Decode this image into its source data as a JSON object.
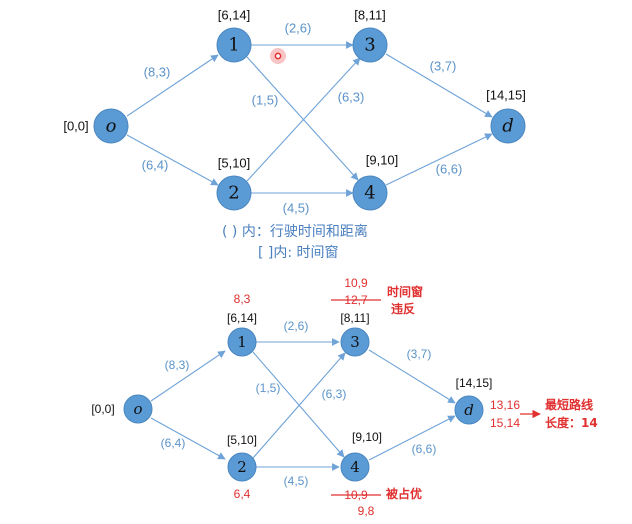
{
  "top": {
    "nodes": {
      "o": {
        "label": "o",
        "window": "[0,0]"
      },
      "n1": {
        "label": "1",
        "window": "[6,14]"
      },
      "n2": {
        "label": "2",
        "window": "[5,10]"
      },
      "n3": {
        "label": "3",
        "window": "[8,11]"
      },
      "n4": {
        "label": "4",
        "window": "[9,10]"
      },
      "d": {
        "label": "d",
        "window": "[14,15]"
      }
    },
    "edges": {
      "o_1": "(8,3)",
      "o_2": "(6,4)",
      "e1_3": "(2,6)",
      "e1_4": "(1,5)",
      "e2_3": "(6,3)",
      "e2_4": "(4,5)",
      "e3_d": "(3,7)",
      "e4_d": "(6,6)"
    },
    "legend": {
      "line1": "( ) 内：行驶时间和距离",
      "line2": "[ ]内: 时间窗"
    }
  },
  "bottom": {
    "nodes": {
      "o": {
        "label": "o",
        "window": "[0,0]"
      },
      "n1": {
        "label": "1",
        "window": "[6,14]"
      },
      "n2": {
        "label": "2",
        "window": "[5,10]"
      },
      "n3": {
        "label": "3",
        "window": "[8,11]"
      },
      "n4": {
        "label": "4",
        "window": "[9,10]"
      },
      "d": {
        "label": "d",
        "window": "[14,15]"
      }
    },
    "edges": {
      "o_1": "(8,3)",
      "o_2": "(6,4)",
      "e1_3": "(2,6)",
      "e1_4": "(1,5)",
      "e2_3": "(6,3)",
      "e2_4": "(4,5)",
      "e3_d": "(3,7)",
      "e4_d": "(6,6)"
    },
    "annotations": {
      "n1_label": "8,3",
      "n2_label": "6,4",
      "n3_label_new": "10,9",
      "n3_label_old": "12,7",
      "n3_note_line1": "时间窗",
      "n3_note_line2": "违反",
      "n4_label_old": "10,9",
      "n4_label_new": "9,8",
      "n4_note": "被占优",
      "d_label_1": "13,16",
      "d_label_2": "15,14",
      "result_line1": "最短路线",
      "result_line2": "长度：14"
    }
  },
  "colors": {
    "node": "#5b9bd5",
    "edge": "#6fa3d8",
    "edge_label": "#5b93c9",
    "annotation": "#e03030"
  }
}
